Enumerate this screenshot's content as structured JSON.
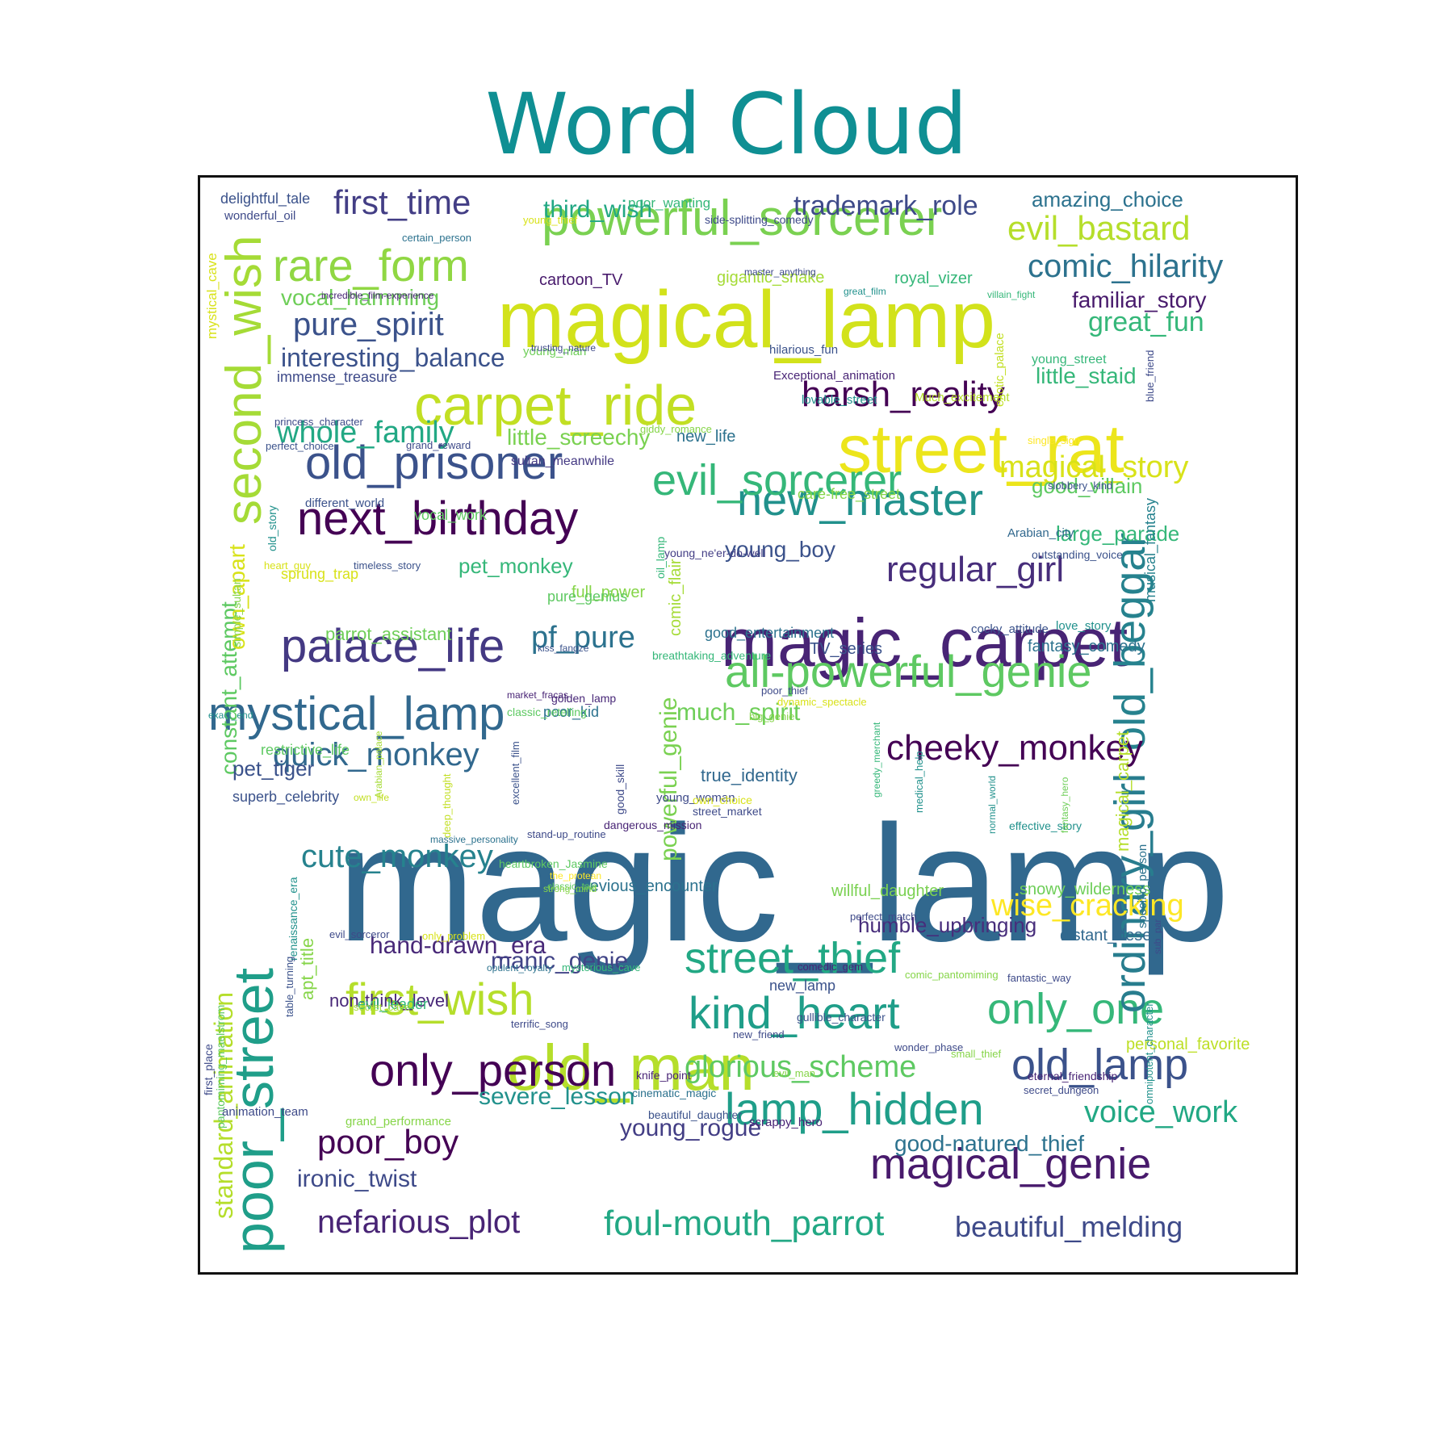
{
  "chart_data": {
    "type": "wordcloud",
    "title": "Word Cloud",
    "colormap": "viridis",
    "words": [
      {
        "text": "magic_lamp",
        "color": "#31688e"
      },
      {
        "text": "magical_lamp",
        "color": "#d2e21b"
      },
      {
        "text": "magic_carpet",
        "color": "#482475"
      },
      {
        "text": "street_rat",
        "color": "#ece51b"
      },
      {
        "text": "old_man",
        "color": "#b5de2b"
      },
      {
        "text": "carpet_ride",
        "color": "#c2df23"
      },
      {
        "text": "poor_street",
        "color": "#1f9e89"
      },
      {
        "text": "second_wish",
        "color": "#a5db36"
      },
      {
        "text": "powerful_sorcerer",
        "color": "#7ad151"
      },
      {
        "text": "next_birthday",
        "color": "#440154"
      },
      {
        "text": "old_prisoner",
        "color": "#3b528b"
      },
      {
        "text": "palace_life",
        "color": "#443983"
      },
      {
        "text": "mystical_lamp",
        "color": "#31688e"
      },
      {
        "text": "new_master",
        "color": "#21918c"
      },
      {
        "text": "all-powerful_genie",
        "color": "#5ec962"
      },
      {
        "text": "evil_sorcerer",
        "color": "#35b779"
      },
      {
        "text": "street_thief",
        "color": "#22a884"
      },
      {
        "text": "kind_heart",
        "color": "#1f9e89"
      },
      {
        "text": "only_person",
        "color": "#440154"
      },
      {
        "text": "first_wish",
        "color": "#b5de2b"
      },
      {
        "text": "lamp_hidden",
        "color": "#1f9e89"
      },
      {
        "text": "magical_genie",
        "color": "#481a6c"
      },
      {
        "text": "old_lamp",
        "color": "#3b528b"
      },
      {
        "text": "only_one",
        "color": "#35b779"
      },
      {
        "text": "ordinary_girl",
        "color": "#287d8e"
      },
      {
        "text": "old_beggar",
        "color": "#26828e"
      },
      {
        "text": "rare_form",
        "color": "#90d743"
      },
      {
        "text": "harsh_reality",
        "color": "#440154"
      },
      {
        "text": "regular_girl",
        "color": "#472d7b"
      },
      {
        "text": "cheeky_monkey",
        "color": "#440154"
      },
      {
        "text": "foul-mouth_parrot",
        "color": "#22a884"
      },
      {
        "text": "nefarious_plot",
        "color": "#482475"
      },
      {
        "text": "poor_boy",
        "color": "#440154"
      },
      {
        "text": "beautiful_melding",
        "color": "#3e4a89"
      },
      {
        "text": "first_time",
        "color": "#433e85"
      },
      {
        "text": "evil_bastard",
        "color": "#b5de2b"
      },
      {
        "text": "comic_hilarity",
        "color": "#2c728e"
      },
      {
        "text": "pure_spirit",
        "color": "#3b528b"
      },
      {
        "text": "quick_monkey",
        "color": "#31688e"
      },
      {
        "text": "cute_monkey",
        "color": "#26828e"
      },
      {
        "text": "glorious_scheme",
        "color": "#5ec962"
      },
      {
        "text": "voice_work",
        "color": "#22a884"
      },
      {
        "text": "standard_animation",
        "color": "#b5de2b"
      },
      {
        "text": "magical_story",
        "color": "#d8e219"
      },
      {
        "text": "wise_cracking",
        "color": "#fde725"
      },
      {
        "text": "whole_family",
        "color": "#22a884"
      },
      {
        "text": "pf_pure",
        "color": "#2c728e"
      },
      {
        "text": "interesting_balance",
        "color": "#3b528b"
      },
      {
        "text": "great_fun",
        "color": "#35b779"
      },
      {
        "text": "third_wish",
        "color": "#22a884"
      },
      {
        "text": "trademark_role",
        "color": "#3e4a89"
      },
      {
        "text": "constant_attempt",
        "color": "#5ec962"
      },
      {
        "text": "good-natured_thief",
        "color": "#2c728e"
      },
      {
        "text": "powerful_genie",
        "color": "#7ad151"
      },
      {
        "text": "severe_lesson",
        "color": "#21918c"
      },
      {
        "text": "much_spirit",
        "color": "#6ece58"
      },
      {
        "text": "young_rogue",
        "color": "#433e85"
      },
      {
        "text": "ironic_twist",
        "color": "#3e4a89"
      },
      {
        "text": "hand-drawn_era",
        "color": "#482878"
      },
      {
        "text": "manic_genie",
        "color": "#414487"
      },
      {
        "text": "humble_upbringing",
        "color": "#472d7b"
      },
      {
        "text": "familiar_story",
        "color": "#481a6c"
      },
      {
        "text": "little_staid",
        "color": "#35b779"
      },
      {
        "text": "amazing_choice",
        "color": "#2c728e"
      },
      {
        "text": "young_boy",
        "color": "#3b528b"
      },
      {
        "text": "vocal_hamming",
        "color": "#6ece58"
      },
      {
        "text": "little_screechy",
        "color": "#7ad151"
      },
      {
        "text": "good_villain",
        "color": "#5ec962"
      },
      {
        "text": "large_parade",
        "color": "#35b779"
      },
      {
        "text": "pet_monkey",
        "color": "#35b779"
      },
      {
        "text": "own_apart",
        "color": "#d8e219"
      },
      {
        "text": "pet_tiger",
        "color": "#3b528b"
      },
      {
        "text": "musical_fantasy",
        "color": "#26828e"
      },
      {
        "text": "magical_carpet",
        "color": "#b5de2b"
      },
      {
        "text": "distant_desert",
        "color": "#31688e"
      },
      {
        "text": "previous_encounter",
        "color": "#2c728e"
      },
      {
        "text": "true_identity",
        "color": "#31688e"
      },
      {
        "text": "parrot_assistant",
        "color": "#6ece58"
      },
      {
        "text": "apt_title",
        "color": "#86d549"
      },
      {
        "text": "non-think_level",
        "color": "#482878"
      },
      {
        "text": "willful_daughter",
        "color": "#7ad151"
      },
      {
        "text": "snowy_wilderness",
        "color": "#6ece58"
      },
      {
        "text": "fantasy_comedy",
        "color": "#2c728e"
      },
      {
        "text": "comic_flair",
        "color": "#a5db36"
      },
      {
        "text": "personal_favorite",
        "color": "#bddf26"
      },
      {
        "text": "evil_leader",
        "color": "#35b779"
      },
      {
        "text": "full_power",
        "color": "#86d549"
      },
      {
        "text": "new_life",
        "color": "#2c728e"
      },
      {
        "text": "TV_series",
        "color": "#3b528b"
      },
      {
        "text": "specific_person",
        "color": "#2c728e"
      },
      {
        "text": "good_entertainment",
        "color": "#2c728e"
      },
      {
        "text": "cartoon_TV",
        "color": "#481a6c"
      },
      {
        "text": "gigantic_snake",
        "color": "#a5db36"
      },
      {
        "text": "royal_vizer",
        "color": "#35b779"
      },
      {
        "text": "mystical_cave",
        "color": "#d8e219"
      },
      {
        "text": "superb_celebrity",
        "color": "#3b528b"
      },
      {
        "text": "restrictive_life",
        "color": "#5ec962"
      },
      {
        "text": "new_lamp",
        "color": "#3b528b"
      },
      {
        "text": "vocal_work",
        "color": "#5ec962"
      },
      {
        "text": "immense_treasure",
        "color": "#3e4a89"
      },
      {
        "text": "sprung_trap",
        "color": "#d8e219"
      },
      {
        "text": "pure_genius",
        "color": "#5ec962"
      },
      {
        "text": "young_street",
        "color": "#35b779"
      },
      {
        "text": "care-free_street",
        "color": "#86d549"
      },
      {
        "text": "sultan_meanwhile",
        "color": "#443983"
      },
      {
        "text": "simple_sultan",
        "color": "#86d549"
      },
      {
        "text": "delightful_tale",
        "color": "#3b528b"
      },
      {
        "text": "poor_kid",
        "color": "#2c728e"
      },
      {
        "text": "young_woman",
        "color": "#3e4a89"
      },
      {
        "text": "Arabian_city",
        "color": "#31688e"
      },
      {
        "text": "effective_story",
        "color": "#21918c"
      },
      {
        "text": "renaissance_era",
        "color": "#21918c"
      },
      {
        "text": "outstanding_voice",
        "color": "#3b528b"
      },
      {
        "text": "young_man",
        "color": "#6ece58"
      },
      {
        "text": "lovable_street",
        "color": "#21918c"
      },
      {
        "text": "hilarious_fun",
        "color": "#3b528b"
      },
      {
        "text": "Much_excitement",
        "color": "#b5de2b"
      },
      {
        "text": "Exceptional_animation",
        "color": "#482475"
      },
      {
        "text": "exotic_palace",
        "color": "#c2df23"
      },
      {
        "text": "blue_friend",
        "color": "#3e4a89"
      },
      {
        "text": "different_world",
        "color": "#3b528b"
      },
      {
        "text": "old_story",
        "color": "#21918c"
      },
      {
        "text": "cocky_attitude",
        "color": "#3b528b"
      },
      {
        "text": "love_story",
        "color": "#21918c"
      },
      {
        "text": "oil_lamp",
        "color": "#35b779"
      },
      {
        "text": "young_ne'er-do-well",
        "color": "#433e85"
      },
      {
        "text": "breathtaking_adventure",
        "color": "#35b779"
      },
      {
        "text": "perfect_choice",
        "color": "#3b528b"
      },
      {
        "text": "princess_character",
        "color": "#3e4a89"
      },
      {
        "text": "grand_reward",
        "color": "#3e4a89"
      },
      {
        "text": "single_sign",
        "color": "#fde725"
      },
      {
        "text": "giddy_romance",
        "color": "#86d549"
      },
      {
        "text": "slobbery_kind",
        "color": "#3b528b"
      },
      {
        "text": "heart_guy",
        "color": "#d8e219"
      },
      {
        "text": "timeless_story",
        "color": "#3b528b"
      },
      {
        "text": "kiss_fangze",
        "color": "#3b528b"
      },
      {
        "text": "golden_lamp",
        "color": "#482878"
      },
      {
        "text": "market_fracas",
        "color": "#482475"
      },
      {
        "text": "classic_retelling",
        "color": "#5ec962"
      },
      {
        "text": "poor_thief",
        "color": "#3e4a89"
      },
      {
        "text": "dynamic_spectacle",
        "color": "#d8e219"
      },
      {
        "text": "big_genie",
        "color": "#86d549"
      },
      {
        "text": "exact_end",
        "color": "#21918c"
      },
      {
        "text": "Arabian_palace",
        "color": "#a5db36"
      },
      {
        "text": "deep_thought",
        "color": "#c2df23"
      },
      {
        "text": "excellent_film",
        "color": "#3b528b"
      },
      {
        "text": "good_skill",
        "color": "#3e4a89"
      },
      {
        "text": "own_choice",
        "color": "#d8e219"
      },
      {
        "text": "street_market",
        "color": "#3e4a89"
      },
      {
        "text": "greedy_merchant",
        "color": "#35b779"
      },
      {
        "text": "medical_help",
        "color": "#21918c"
      },
      {
        "text": "normal_world",
        "color": "#21918c"
      },
      {
        "text": "fantasy_hero",
        "color": "#6ece58"
      },
      {
        "text": "own_life",
        "color": "#c2df23"
      },
      {
        "text": "dangerous_mission",
        "color": "#482475"
      },
      {
        "text": "massive_personality",
        "color": "#2c728e"
      },
      {
        "text": "stand-up_routine",
        "color": "#3e4a89"
      },
      {
        "text": "heartbroken_Jasmine",
        "color": "#5ec962"
      },
      {
        "text": "the_protean",
        "color": "#fde725"
      },
      {
        "text": "classic_tale",
        "color": "#5ec962"
      },
      {
        "text": "strong_mind",
        "color": "#86d549"
      },
      {
        "text": "perfect_match",
        "color": "#3e4a89"
      },
      {
        "text": "sub_par",
        "color": "#3e4a89"
      },
      {
        "text": "evil_sorceror",
        "color": "#3e4a89"
      },
      {
        "text": "only_problem",
        "color": "#d8e219"
      },
      {
        "text": "comedic_gem",
        "color": "#482475"
      },
      {
        "text": "comic_pantomiming",
        "color": "#86d549"
      },
      {
        "text": "fantastic_way",
        "color": "#3e4a89"
      },
      {
        "text": "opulent_royalty",
        "color": "#2c728e"
      },
      {
        "text": "mysterious_cave",
        "color": "#35b779"
      },
      {
        "text": "table_turning",
        "color": "#3b528b"
      },
      {
        "text": "secret_cave",
        "color": "#a5db36"
      },
      {
        "text": "terrific_song",
        "color": "#3e4a89"
      },
      {
        "text": "new_friend",
        "color": "#3e4a89"
      },
      {
        "text": "gullible_character",
        "color": "#3b528b"
      },
      {
        "text": "wonder_phase",
        "color": "#3e4a89"
      },
      {
        "text": "evil_man",
        "color": "#86d549"
      },
      {
        "text": "small_thief",
        "color": "#86d549"
      },
      {
        "text": "eternal_friendship",
        "color": "#482475"
      },
      {
        "text": "knife_point",
        "color": "#482475"
      },
      {
        "text": "cinematic_magic",
        "color": "#2c728e"
      },
      {
        "text": "pantomiming_maelstrom",
        "color": "#5ec962"
      },
      {
        "text": "first_place",
        "color": "#3e4a89"
      },
      {
        "text": "beautiful_daughter",
        "color": "#3b528b"
      },
      {
        "text": "scrappy_hero",
        "color": "#482475"
      },
      {
        "text": "secret_dungeon",
        "color": "#3e4a89"
      },
      {
        "text": "omnipotent_character",
        "color": "#21918c"
      },
      {
        "text": "animation_team",
        "color": "#3e4a89"
      },
      {
        "text": "grand_performance",
        "color": "#86d549"
      },
      {
        "text": "wonderful_oil",
        "color": "#3e4a89"
      },
      {
        "text": "poor_wanting",
        "color": "#35b779"
      },
      {
        "text": "young_thief",
        "color": "#d8e219"
      },
      {
        "text": "side-splitting_comedy",
        "color": "#3e4a89"
      },
      {
        "text": "certain_person",
        "color": "#2c728e"
      },
      {
        "text": "master_anything",
        "color": "#3e4a89"
      },
      {
        "text": "great_film",
        "color": "#21918c"
      },
      {
        "text": "incredible_film-experience",
        "color": "#482475"
      },
      {
        "text": "villain_fight",
        "color": "#35b779"
      },
      {
        "text": "trusting_nature",
        "color": "#3e4a89"
      },
      {
        "text": "princess_jasmine",
        "color": "#3e4a89"
      }
    ]
  }
}
